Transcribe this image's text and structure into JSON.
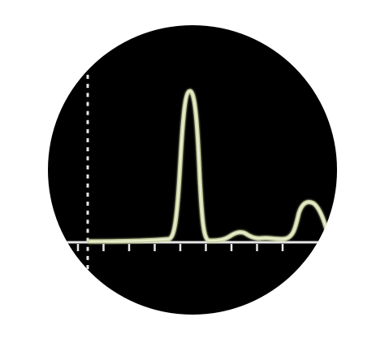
{
  "scope_icon": {
    "description_name": "oscilloscope-waveform-icon",
    "colors": {
      "background": "#ffffff",
      "disc": "#000000",
      "axis": "#e6e6e6",
      "trace": "#cfd6a6",
      "trace_core": "#eef1d8"
    },
    "tick_count": 9,
    "dotted_axis_dots": 22
  }
}
